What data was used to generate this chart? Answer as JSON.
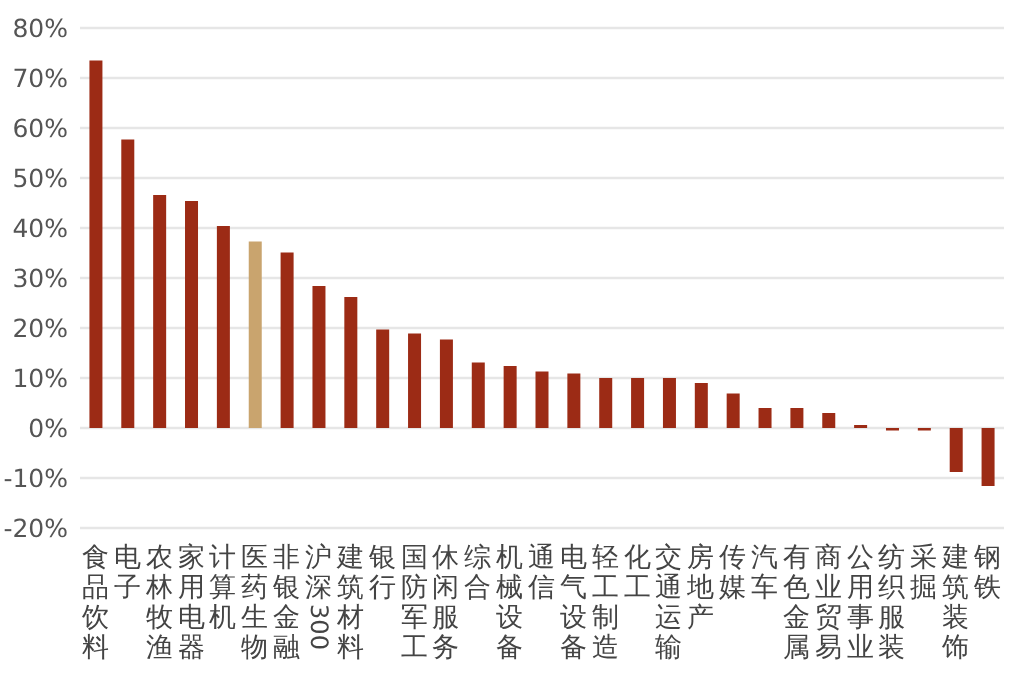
{
  "chart_data": {
    "type": "bar",
    "categories": [
      "食品饮料",
      "电子",
      "农林牧渔",
      "家用电器",
      "计算机",
      "医药生物",
      "非银金融",
      "沪深300",
      "建筑材料",
      "银行",
      "国防军工",
      "休闲服务",
      "综合",
      "机械设备",
      "通信",
      "电气设备",
      "轻工制造",
      "化工",
      "交通运输",
      "房地产",
      "传媒",
      "汽车",
      "有色金属",
      "商业贸易",
      "公用事业",
      "纺织服装",
      "采掘",
      "建筑装饰",
      "钢铁"
    ],
    "values": [
      73.5,
      57.7,
      46.6,
      45.4,
      40.4,
      37.3,
      35.1,
      28.4,
      26.2,
      19.7,
      18.9,
      17.7,
      13.1,
      12.4,
      11.3,
      10.9,
      10.0,
      10.0,
      10.0,
      9.0,
      6.9,
      4.0,
      4.0,
      3.0,
      0.6,
      -0.5,
      -0.5,
      -8.8,
      -11.6
    ],
    "colors": [
      "#9c2b15",
      "#9c2b15",
      "#9c2b15",
      "#9c2b15",
      "#9c2b15",
      "#c9a46e",
      "#9c2b15",
      "#9c2b15",
      "#9c2b15",
      "#9c2b15",
      "#9c2b15",
      "#9c2b15",
      "#9c2b15",
      "#9c2b15",
      "#9c2b15",
      "#9c2b15",
      "#9c2b15",
      "#9c2b15",
      "#9c2b15",
      "#9c2b15",
      "#9c2b15",
      "#9c2b15",
      "#9c2b15",
      "#9c2b15",
      "#9c2b15",
      "#9c2b15",
      "#9c2b15",
      "#9c2b15",
      "#9c2b15"
    ],
    "ylim": [
      -20,
      80
    ],
    "yticks": [
      {
        "value": -20,
        "label": "-20%"
      },
      {
        "value": -10,
        "label": "-10%"
      },
      {
        "value": 0,
        "label": "0%"
      },
      {
        "value": 10,
        "label": "10%"
      },
      {
        "value": 20,
        "label": "20%"
      },
      {
        "value": 30,
        "label": "30%"
      },
      {
        "value": 40,
        "label": "40%"
      },
      {
        "value": 50,
        "label": "50%"
      },
      {
        "value": 60,
        "label": "60%"
      },
      {
        "value": 70,
        "label": "70%"
      },
      {
        "value": 80,
        "label": "80%"
      }
    ],
    "grid": "y"
  }
}
